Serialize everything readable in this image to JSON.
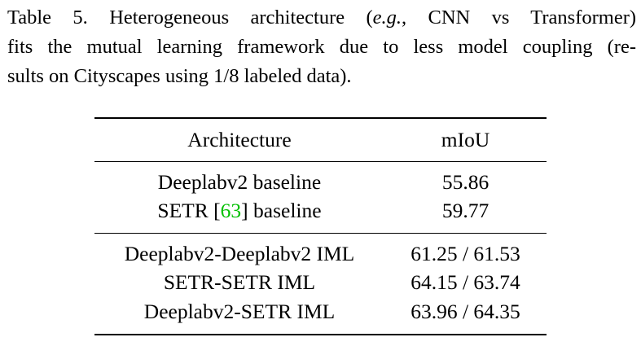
{
  "caption": {
    "label": "Table 5.",
    "line1_pre": "Heterogeneous architecture (",
    "line1_eg": "e.g.",
    "line1_post": ", CNN vs Transformer)",
    "line2": "fits the mutual learning framework due to less model coupling (re-",
    "line3": "sults on Cityscapes using 1/8 labeled data)."
  },
  "table": {
    "headers": [
      "Architecture",
      "mIoU"
    ],
    "baseline_rows": [
      {
        "arch": "Deeplabv2 baseline",
        "miou": "55.86"
      },
      {
        "arch_pre": "SETR [",
        "cite": "63",
        "arch_post": "] baseline",
        "miou": "59.77"
      }
    ],
    "iml_rows": [
      {
        "arch": "Deeplabv2-Deeplabv2 IML",
        "miou": "61.25 / 61.53"
      },
      {
        "arch": "SETR-SETR IML",
        "miou": "64.15 / 63.74"
      },
      {
        "arch": "Deeplabv2-SETR IML",
        "miou": "63.96 / 64.35"
      }
    ]
  },
  "colors": {
    "text": "#000000",
    "citation_link": "#00c000",
    "background": "#ffffff"
  }
}
